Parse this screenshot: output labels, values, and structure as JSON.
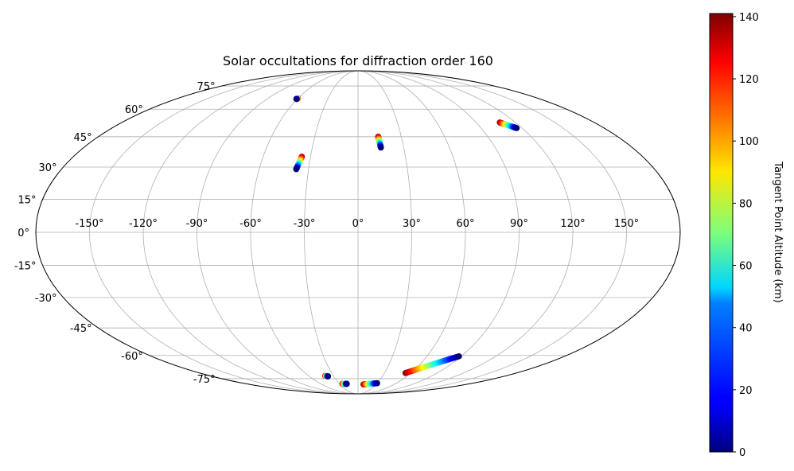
{
  "chart_data": {
    "type": "scatter",
    "projection": "mollweide",
    "title": "Solar occultations for diffraction order 160",
    "grid": true,
    "longitude_ticks": [
      "-150°",
      "-120°",
      "-90°",
      "-60°",
      "-30°",
      "0°",
      "30°",
      "60°",
      "90°",
      "120°",
      "150°"
    ],
    "latitude_ticks": [
      "75°",
      "60°",
      "45°",
      "30°",
      "15°",
      "0°",
      "-15°",
      "-30°",
      "-45°",
      "-60°",
      "-75°"
    ],
    "colorbar": {
      "label": "Tangent Point Altitude (km)",
      "colormap": "jet",
      "range": [
        0,
        141
      ],
      "ticks": [
        "0",
        "20",
        "40",
        "60",
        "80",
        "100",
        "120",
        "140"
      ]
    },
    "tracks": [
      {
        "lon_start": -60,
        "lat_start": 66.5,
        "alt_start": 140,
        "lon_end": -61,
        "lat_end": 66.2,
        "alt_end": 0
      },
      {
        "lon_start": -35.5,
        "lat_start": 35,
        "alt_start": 140,
        "lon_end": -37.5,
        "lat_end": 29,
        "alt_end": 0
      },
      {
        "lon_start": 14,
        "lat_start": 45,
        "alt_start": 140,
        "lon_end": 15,
        "lat_end": 39.5,
        "alt_end": 0
      },
      {
        "lon_start": 108,
        "lat_start": 52.5,
        "alt_start": 140,
        "lon_end": 116,
        "lat_end": 49.5,
        "alt_end": 0
      },
      {
        "lon_start": -40,
        "lat_start": -73,
        "alt_start": 140,
        "lon_end": -37,
        "lat_end": -73.3,
        "alt_end": 0
      },
      {
        "lon_start": -25,
        "lat_start": -79,
        "alt_start": 140,
        "lon_end": -18,
        "lat_end": -79,
        "alt_end": 0
      },
      {
        "lon_start": 9,
        "lat_start": -79.5,
        "alt_start": 140,
        "lon_end": 30,
        "lat_end": -78.5,
        "alt_end": 0
      },
      {
        "lon_start": 54,
        "lat_start": -71,
        "alt_start": 140,
        "lon_end": 88,
        "lat_end": -60.5,
        "alt_end": 0
      }
    ]
  }
}
